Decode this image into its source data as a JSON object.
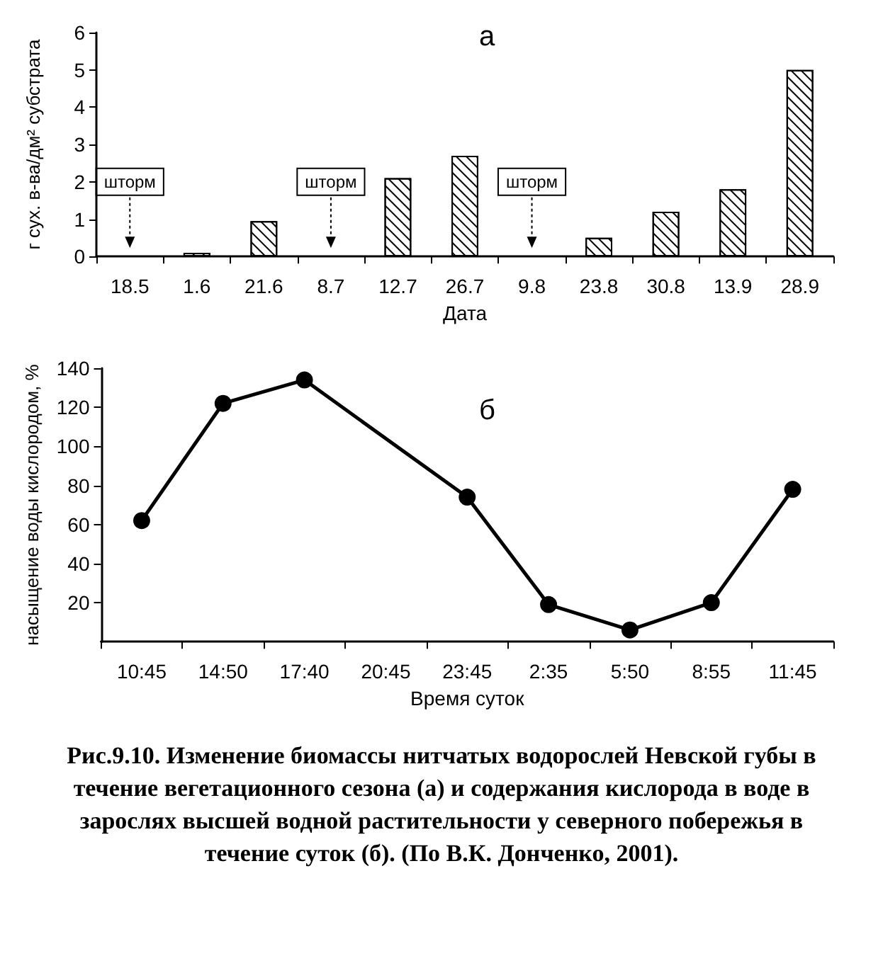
{
  "chart_data": [
    {
      "type": "bar",
      "xlabel": "Дата",
      "ylabel": "г сух. в-ва/дм² субстрата",
      "categories": [
        "18.5",
        "1.6",
        "21.6",
        "8.7",
        "12.7",
        "26.7",
        "9.8",
        "23.8",
        "30.8",
        "13.9",
        "28.9"
      ],
      "values": [
        null,
        0.1,
        0.95,
        null,
        2.1,
        2.7,
        null,
        0.5,
        1.2,
        1.8,
        5.0
      ],
      "color": "#ffffff",
      "ylim": [
        0,
        6
      ],
      "yticks": [
        0,
        1,
        2,
        3,
        4,
        5,
        6
      ],
      "grid": false,
      "annotations": [
        "а",
        "шторм",
        "шторм",
        "шторм"
      ]
    },
    {
      "type": "line",
      "xlabel": "Время суток",
      "ylabel": "насыщение воды кислородом, %",
      "categories": [
        "10:45",
        "14:50",
        "17:40",
        "20:45",
        "23:45",
        "2:35",
        "5:50",
        "8:55",
        "11:45"
      ],
      "values": [
        62,
        122,
        134,
        null,
        74,
        19,
        6,
        20,
        78
      ],
      "color": "#000000",
      "marker": "circle",
      "line_style": "solid",
      "ylim": [
        0,
        140
      ],
      "yticks": [
        20,
        40,
        60,
        80,
        100,
        120,
        140
      ],
      "grid": false,
      "annotations": [
        "б",
        "Рис.9.10. Изменение биомассы нитчатых водорослей Невской губы в течение вегетационного сезона (а) и содержания кислорода в воде в зарослях высшей водной растительности у северного побережья в течение суток (б). (По В.К. Донченко, 2001)."
      ]
    }
  ]
}
